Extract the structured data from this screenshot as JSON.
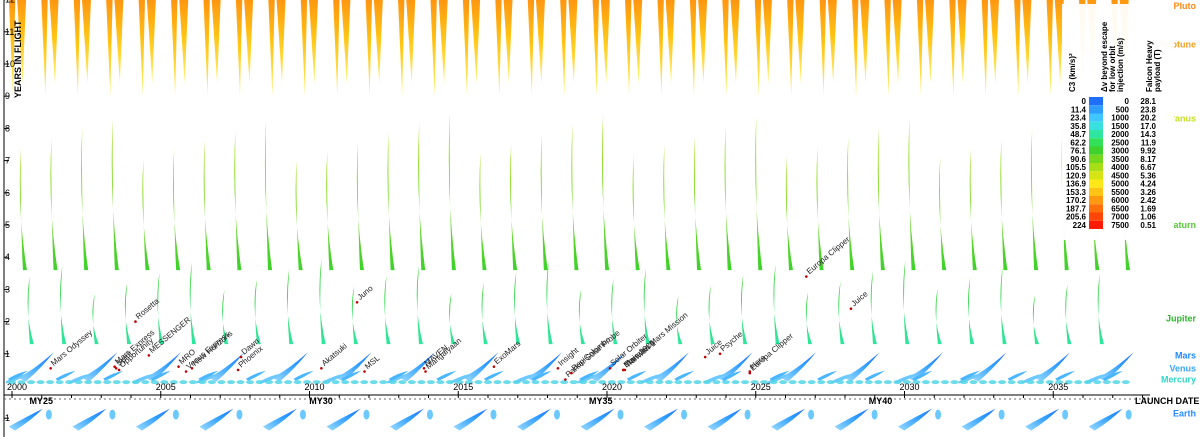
{
  "chart_data": {
    "type": "heatmap",
    "title": "",
    "xlabel": "LAUNCH DATE",
    "ylabel": "YEARS IN FLIGHT",
    "xlim": [
      2000,
      2038
    ],
    "ylim": [
      -1.3,
      12
    ],
    "x_ticks": [
      "2000",
      "2005",
      "2010",
      "2015",
      "2020",
      "2025",
      "2030",
      "2035"
    ],
    "y_ticks": [
      "1",
      "2",
      "3",
      "4",
      "5",
      "6",
      "7",
      "8",
      "9",
      "10",
      "11",
      "12"
    ],
    "y_ticks_below": [
      "1"
    ],
    "mars_years": [
      "MY25",
      "MY30",
      "MY35",
      "MY40"
    ],
    "grid": false,
    "legend": {
      "placement": "top-right",
      "headers": {
        "c3": "C3 (km/s)²",
        "dv": "Δv beyond escape for low orbit injection (m/s)",
        "payload": "Falcon Heavy payload (T)"
      },
      "c3": [
        "0",
        "11.4",
        "23.4",
        "35.8",
        "48.7",
        "62.2",
        "76.1",
        "90.6",
        "105.5",
        "120.9",
        "136.9",
        "153.3",
        "170.2",
        "187.7",
        "205.6",
        "224"
      ],
      "dv": [
        "0",
        "500",
        "1000",
        "1500",
        "2000",
        "2500",
        "3000",
        "3500",
        "4000",
        "4500",
        "5000",
        "5500",
        "6000",
        "6500",
        "7000",
        "7500"
      ],
      "payload": [
        "28.1",
        "23.8",
        "20.2",
        "17.0",
        "14.3",
        "11.9",
        "9.92",
        "8.17",
        "6.67",
        "5.36",
        "4.24",
        "3.26",
        "2.42",
        "1.69",
        "1.06",
        "0.51"
      ],
      "colors": [
        "#1e6fff",
        "#2f9dff",
        "#3fc6ff",
        "#38e0e0",
        "#2ee6a0",
        "#32e05a",
        "#3fd12c",
        "#74d81e",
        "#a8de16",
        "#d6e414",
        "#ffe817",
        "#ffc414",
        "#ff9a10",
        "#ff700c",
        "#ff4608",
        "#ff1a05"
      ]
    },
    "planets": [
      {
        "name": "Pluto",
        "years": 11.8,
        "color": "#ff8a1a"
      },
      {
        "name": "Neptune",
        "years": 10.6,
        "color": "#f0a020"
      },
      {
        "name": "Uranus",
        "years": 8.3,
        "color": "#c8e020"
      },
      {
        "name": "Saturn",
        "years": 5.0,
        "color": "#58c83a"
      },
      {
        "name": "Jupiter",
        "years": 2.1,
        "color": "#2db52d"
      },
      {
        "name": "Mars",
        "years": 0.95,
        "color": "#1e88ff"
      },
      {
        "name": "Venus",
        "years": 0.55,
        "color": "#38a8ff"
      },
      {
        "name": "Mercury",
        "years": 0.2,
        "color": "#30d8c8"
      },
      {
        "name": "Earth",
        "years": -0.85,
        "color": "#2a8cff"
      }
    ],
    "missions": [
      {
        "name": "Mars Odyssey",
        "date": 2001.3,
        "years": 0.55
      },
      {
        "name": "Mars Express",
        "date": 2003.45,
        "years": 0.6
      },
      {
        "name": "Spirit",
        "date": 2003.5,
        "years": 0.55
      },
      {
        "name": "Opportunity",
        "date": 2003.6,
        "years": 0.5
      },
      {
        "name": "Rosetta",
        "date": 2004.15,
        "years": 2.0
      },
      {
        "name": "MESSENGER",
        "date": 2004.6,
        "years": 0.95
      },
      {
        "name": "MRO",
        "date": 2005.6,
        "years": 0.6
      },
      {
        "name": "New Horizons",
        "date": 2006.05,
        "years": 0.55
      },
      {
        "name": "Venus Express",
        "date": 2005.85,
        "years": 0.45
      },
      {
        "name": "Dawn",
        "date": 2007.7,
        "years": 0.9
      },
      {
        "name": "Phoenix",
        "date": 2007.6,
        "years": 0.5
      },
      {
        "name": "Akatsuki",
        "date": 2010.4,
        "years": 0.55
      },
      {
        "name": "MSL",
        "date": 2011.85,
        "years": 0.45
      },
      {
        "name": "Juno",
        "date": 2011.6,
        "years": 2.6
      },
      {
        "name": "MAVEN",
        "date": 2013.85,
        "years": 0.55
      },
      {
        "name": "Mangalyaan",
        "date": 2013.9,
        "years": 0.45
      },
      {
        "name": "ExoMars",
        "date": 2016.2,
        "years": 0.6
      },
      {
        "name": "Insight",
        "date": 2018.35,
        "years": 0.55
      },
      {
        "name": "Parker Solar Probe",
        "date": 2018.6,
        "years": 0.2
      },
      {
        "name": "Solar Orbiter",
        "date": 2020.1,
        "years": 0.55
      },
      {
        "name": "BepiColombo",
        "date": 2018.8,
        "years": 0.4
      },
      {
        "name": "Mars 2020",
        "date": 2020.55,
        "years": 0.5
      },
      {
        "name": "Tianwen-1",
        "date": 2020.6,
        "years": 0.5
      },
      {
        "name": "Emirates Mars Mission",
        "date": 2020.55,
        "years": 0.5
      },
      {
        "name": "Psyche",
        "date": 2023.8,
        "years": 1.0
      },
      {
        "name": "Juice",
        "date": 2023.3,
        "years": 0.9
      },
      {
        "name": "Hera",
        "date": 2024.8,
        "years": 0.45
      },
      {
        "name": "Europa Clipper",
        "date": 2024.8,
        "years": 0.4
      },
      {
        "name": "Europa Clipper",
        "date": 2026.7,
        "years": 3.4
      },
      {
        "name": "Juice",
        "date": 2028.2,
        "years": 2.4
      }
    ],
    "bands": {
      "outer_period_years": 1.09,
      "jupiter_period_years": 1.09,
      "saturn_period_years": 1.03,
      "mars_period_years": 2.135,
      "venus_period_years": 1.6,
      "outer_min_years": 9.0,
      "outer_max_years": 12.3,
      "saturn_min_years": 3.6,
      "saturn_max_years": 8.5,
      "jupiter_min_years": 1.3,
      "jupiter_max_years": 4.0,
      "mars_min_years": 0.45,
      "mars_max_years": 1.05
    }
  }
}
